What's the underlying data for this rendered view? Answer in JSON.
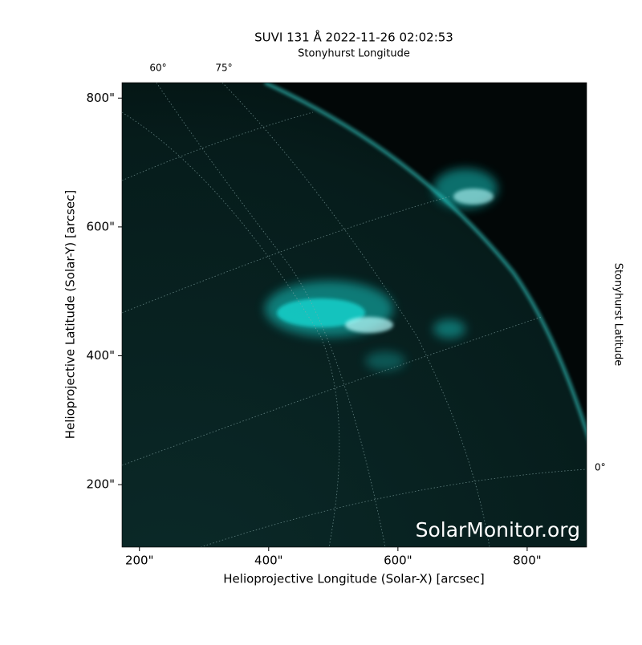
{
  "chart_data": {
    "type": "image",
    "title": "SUVI 131 Å 2022-11-26 02:02:53",
    "top_axis_label": "Stonyhurst Longitude",
    "right_axis_label": "Stonyhurst Latitude",
    "x_label": "Helioprojective Longitude (Solar-X) [arcsec]",
    "y_label": "Helioprojective Latitude (Solar-Y) [arcsec]",
    "xlim": [
      173,
      892
    ],
    "ylim": [
      103,
      824
    ],
    "xticks": [
      {
        "value": 200,
        "label": "200\""
      },
      {
        "value": 400,
        "label": "400\""
      },
      {
        "value": 600,
        "label": "600\""
      },
      {
        "value": 800,
        "label": "800\""
      }
    ],
    "yticks": [
      {
        "value": 200,
        "label": "200\""
      },
      {
        "value": 400,
        "label": "400\""
      },
      {
        "value": 600,
        "label": "600\""
      },
      {
        "value": 800,
        "label": "800\""
      }
    ],
    "top_tick_labels": [
      "60°",
      "75°"
    ],
    "right_tick_labels": [
      "0°"
    ],
    "watermark": "SolarMonitor.org",
    "color": "#19d6d0"
  }
}
